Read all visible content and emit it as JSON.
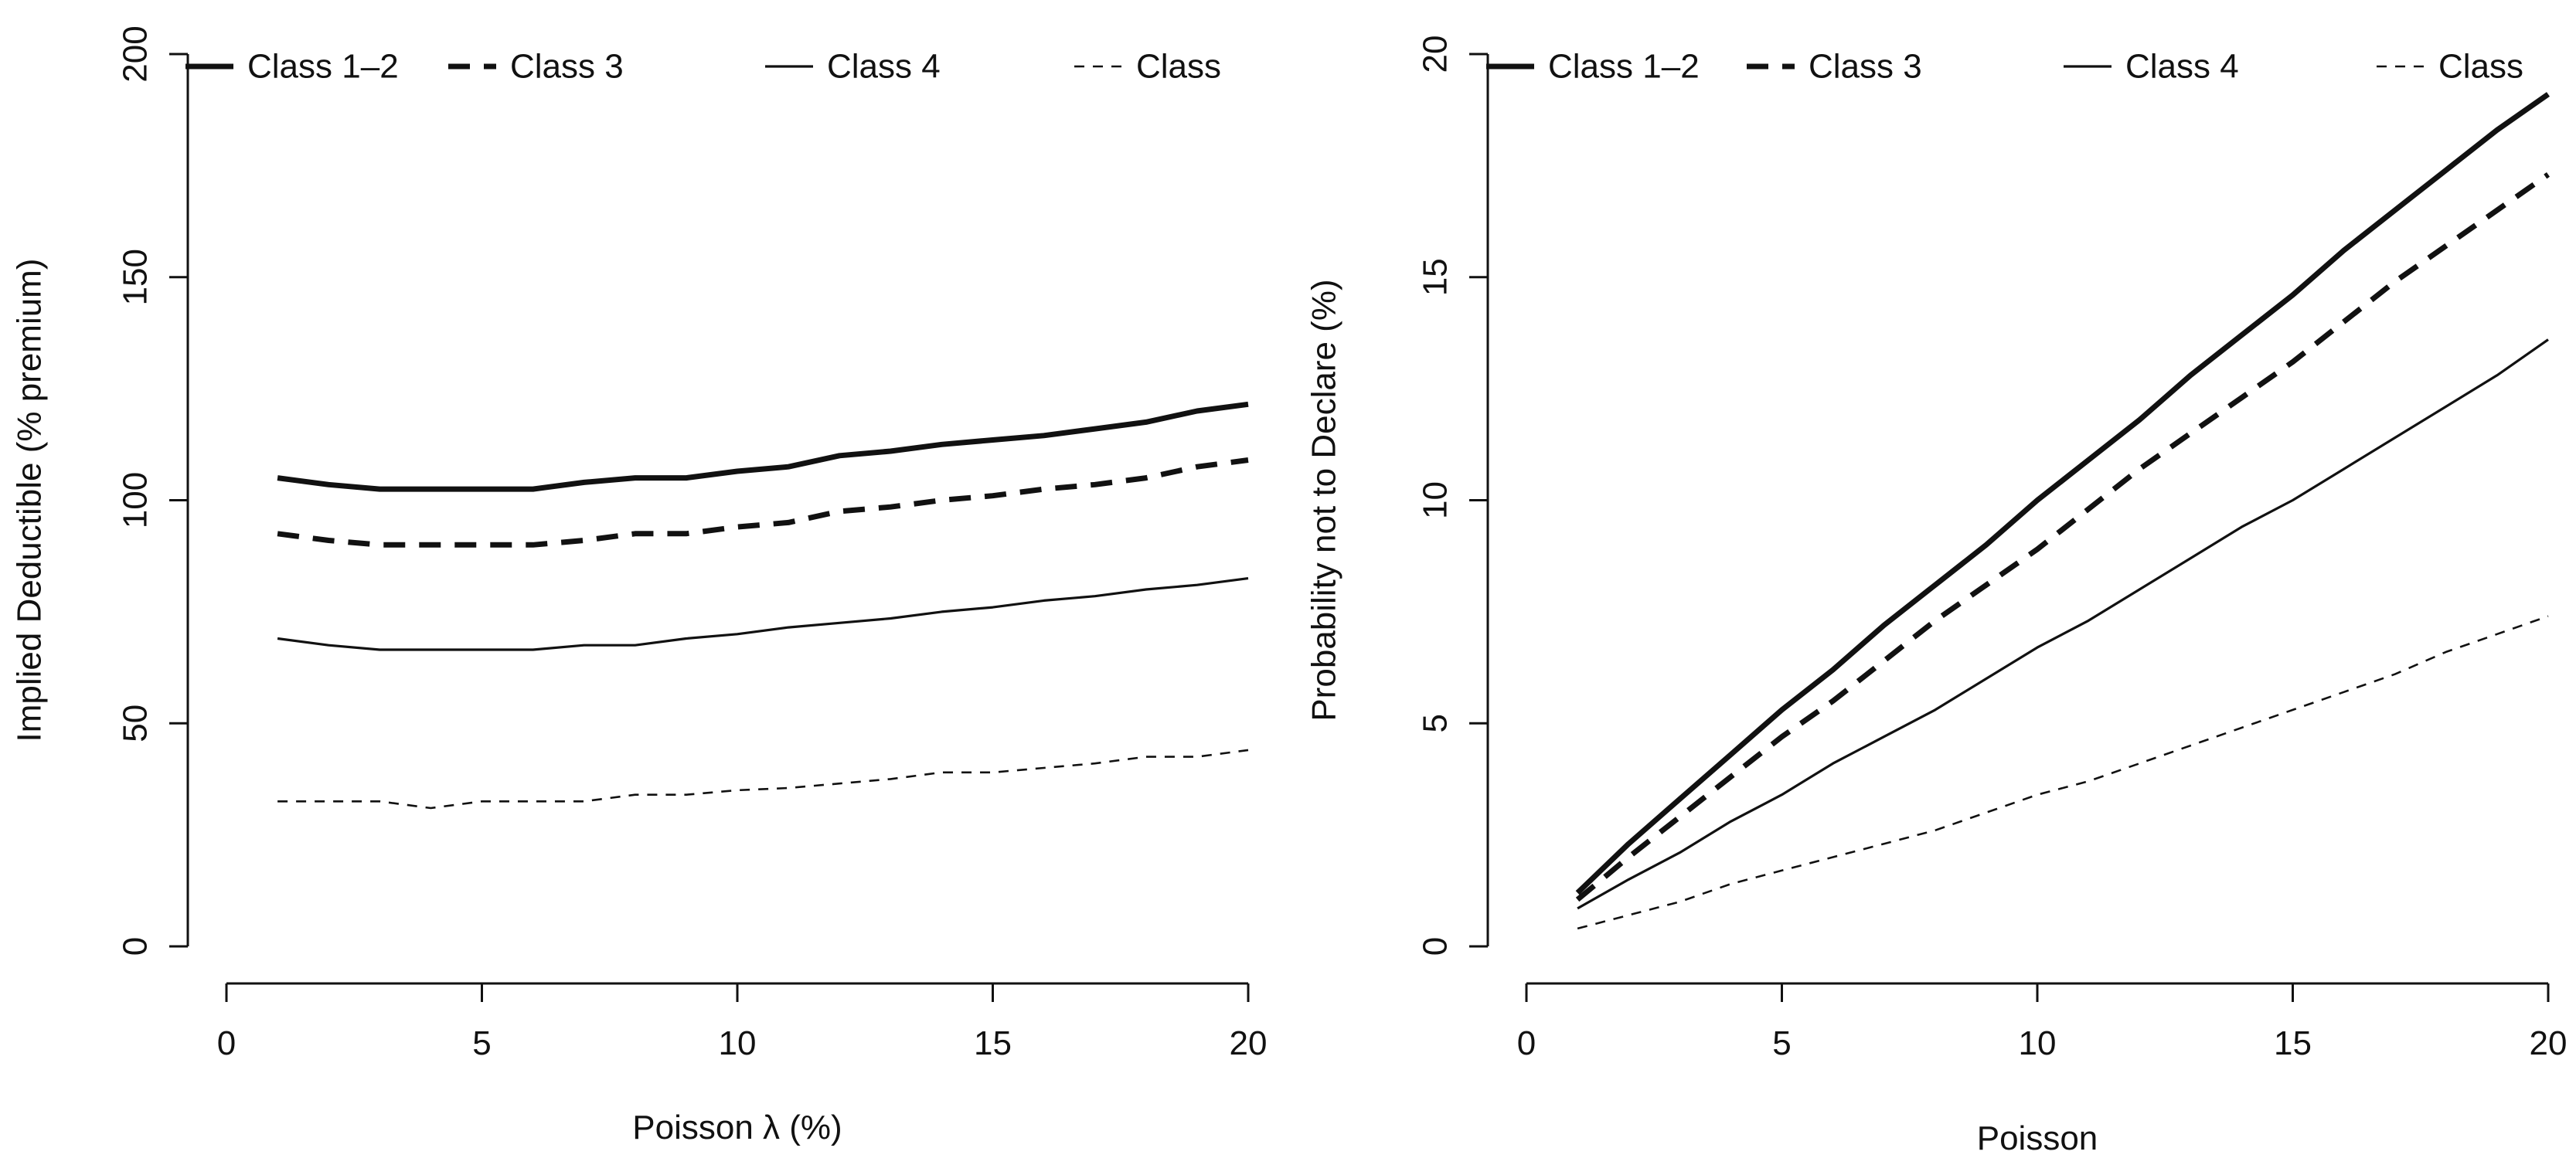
{
  "chart_data": [
    {
      "type": "line",
      "title": "",
      "xlabel": "Poisson λ (%)",
      "ylabel": "Implied Deductible (% premium)",
      "xlim": [
        0,
        20
      ],
      "ylim": [
        0,
        200
      ],
      "xticks": [
        "0",
        "5",
        "10",
        "15",
        "20"
      ],
      "yticks": [
        "0",
        "50",
        "100",
        "150",
        "200"
      ],
      "grid": false,
      "legend": {
        "placement": "top",
        "entries": [
          "Class 1–2",
          "Class 3",
          "Class 4",
          "Class"
        ]
      },
      "x": [
        1,
        2,
        3,
        4,
        5,
        6,
        7,
        8,
        9,
        10,
        11,
        12,
        13,
        14,
        15,
        16,
        17,
        18,
        19,
        20
      ],
      "series": [
        {
          "name": "Class 1–2",
          "style": "thick-solid",
          "values": [
            105,
            103.5,
            102.5,
            102.5,
            102.5,
            102.5,
            104,
            105,
            105,
            106.5,
            107.5,
            110,
            111,
            112.5,
            113.5,
            114.5,
            116,
            117.5,
            120,
            121.5
          ]
        },
        {
          "name": "Class 3",
          "style": "thick-dashed",
          "values": [
            92.5,
            91,
            90,
            90,
            90,
            90,
            91,
            92.5,
            92.5,
            94,
            95,
            97.5,
            98.5,
            100,
            101,
            102.5,
            103.5,
            105,
            107.5,
            109
          ]
        },
        {
          "name": "Class 4",
          "style": "thin-solid",
          "values": [
            69,
            67.5,
            66.5,
            66.5,
            66.5,
            66.5,
            67.5,
            67.5,
            69,
            70,
            71.5,
            72.5,
            73.5,
            75,
            76,
            77.5,
            78.5,
            80,
            81,
            82.5
          ]
        },
        {
          "name": "Class",
          "style": "thin-dashed",
          "values": [
            32.5,
            32.5,
            32.5,
            31,
            32.5,
            32.5,
            32.5,
            34,
            34,
            35,
            35.5,
            36.5,
            37.5,
            39,
            39,
            40,
            41,
            42.5,
            42.5,
            44
          ]
        }
      ]
    },
    {
      "type": "line",
      "title": "",
      "xlabel": "Poisson",
      "ylabel": "Probability not to Declare (%)",
      "xlim": [
        0,
        20
      ],
      "ylim": [
        0,
        20
      ],
      "xticks": [
        "0",
        "5",
        "10",
        "15",
        "20"
      ],
      "yticks": [
        "0",
        "5",
        "10",
        "15",
        "20"
      ],
      "grid": false,
      "legend": {
        "placement": "top",
        "entries": [
          "Class 1–2",
          "Class 3",
          "Class 4",
          "Class"
        ]
      },
      "x": [
        1,
        2,
        3,
        4,
        5,
        6,
        7,
        8,
        9,
        10,
        11,
        12,
        13,
        14,
        15,
        16,
        17,
        18,
        19,
        20
      ],
      "series": [
        {
          "name": "Class 1–2",
          "style": "thick-solid",
          "values": [
            1.2,
            2.3,
            3.3,
            4.3,
            5.3,
            6.2,
            7.2,
            8.1,
            9.0,
            10.0,
            10.9,
            11.8,
            12.8,
            13.7,
            14.6,
            15.6,
            16.5,
            17.4,
            18.3,
            19.1
          ]
        },
        {
          "name": "Class 3",
          "style": "thick-dashed",
          "values": [
            1.05,
            2.0,
            2.9,
            3.8,
            4.7,
            5.5,
            6.4,
            7.3,
            8.1,
            8.9,
            9.8,
            10.7,
            11.5,
            12.3,
            13.1,
            14.0,
            14.9,
            15.7,
            16.5,
            17.3
          ]
        },
        {
          "name": "Class 4",
          "style": "thin-solid",
          "values": [
            0.85,
            1.5,
            2.1,
            2.8,
            3.4,
            4.1,
            4.7,
            5.3,
            6.0,
            6.7,
            7.3,
            8.0,
            8.7,
            9.4,
            10.0,
            10.7,
            11.4,
            12.1,
            12.8,
            13.6
          ]
        },
        {
          "name": "Class",
          "style": "thin-dashed",
          "values": [
            0.4,
            0.7,
            1.0,
            1.4,
            1.7,
            2.0,
            2.3,
            2.6,
            3.0,
            3.4,
            3.7,
            4.1,
            4.5,
            4.9,
            5.3,
            5.7,
            6.1,
            6.6,
            7.0,
            7.4
          ]
        }
      ]
    }
  ]
}
